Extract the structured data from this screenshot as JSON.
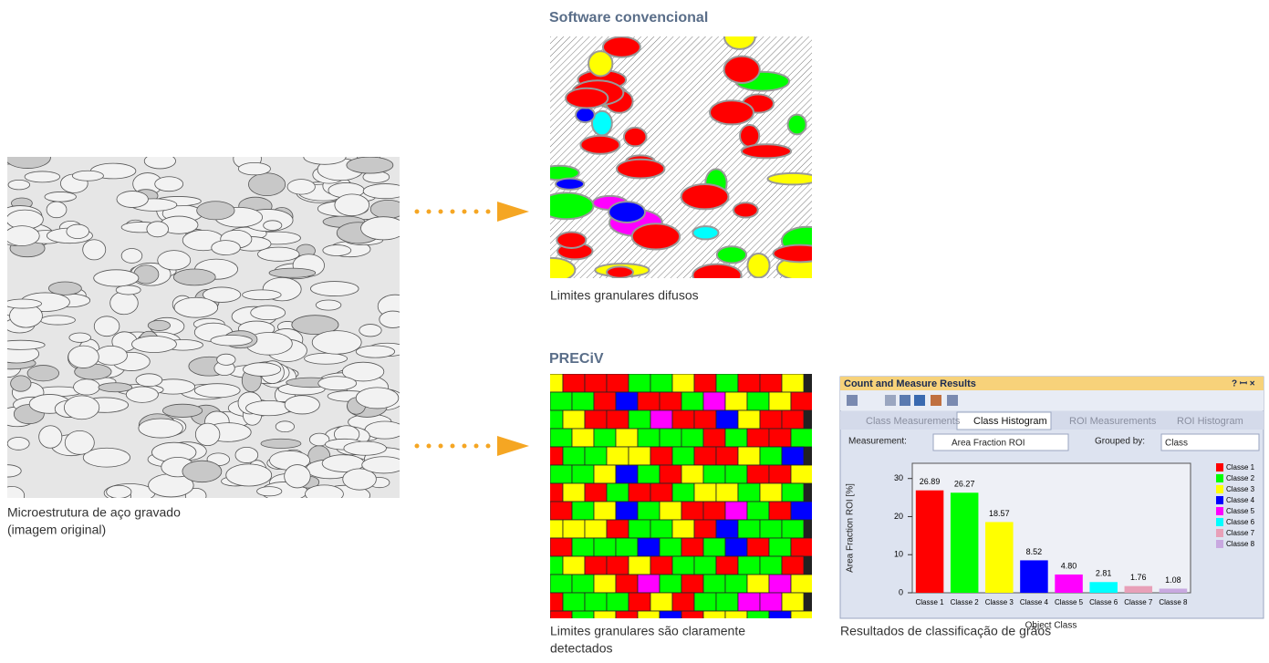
{
  "left_caption": [
    "Microestrutura de aço gravado",
    "(imagem original)"
  ],
  "conventional": {
    "heading": "Software convencional",
    "caption": "Limites granulares difusos"
  },
  "preciv": {
    "heading": "PRECiV",
    "caption": [
      "Limites granulares são claramente",
      "detectados"
    ]
  },
  "results_window": {
    "title": "Count and Measure Results",
    "tabs": [
      "Class Measurements",
      "Class Histogram",
      "ROI Measurements",
      "ROI Histogram"
    ],
    "measurement_label": "Measurement:",
    "measurement_value": "Area Fraction ROI",
    "grouped_label": "Grouped by:",
    "grouped_value": "Class",
    "caption": "Resultados de classificação de grãos"
  },
  "chart_data": {
    "type": "bar",
    "y_label": "Area Fraction ROI [%]",
    "x_label": "Object Class",
    "categories": [
      "Classe 1",
      "Classe 2",
      "Classe 3",
      "Classe 4",
      "Classe 5",
      "Classe 6",
      "Classe 7",
      "Classe 8"
    ],
    "values": [
      26.89,
      26.27,
      18.57,
      8.52,
      4.8,
      2.81,
      1.76,
      1.08
    ],
    "value_labels": [
      "26.89",
      "26.27",
      "18.57",
      "8.52",
      "4.80",
      "2.81",
      "1.76",
      "1.08"
    ],
    "colors": [
      "#ff0000",
      "#00ff00",
      "#ffff00",
      "#0000ff",
      "#ff00ff",
      "#00ffff",
      "#e8a0b8",
      "#c8a8e0"
    ],
    "ylim": [
      0,
      34
    ],
    "yticks": [
      0,
      10,
      20,
      30
    ]
  }
}
